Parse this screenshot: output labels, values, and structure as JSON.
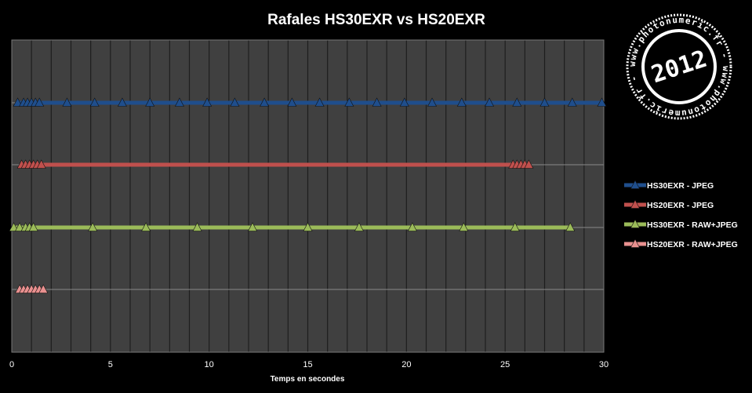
{
  "chart_data": {
    "type": "line",
    "title": "Rafales HS30EXR vs HS20EXR",
    "xlabel": "Temps en secondes",
    "xlim": [
      0,
      30
    ],
    "xticks": [
      "0",
      "5",
      "10",
      "15",
      "20",
      "25",
      "30"
    ],
    "grid": true,
    "legend_position": "right",
    "series": [
      {
        "name": "HS30EXR - JPEG",
        "color": "#1f4e8c",
        "x": [
          0.3,
          0.6,
          0.8,
          1.0,
          1.2,
          1.4,
          2.8,
          4.2,
          5.6,
          7.0,
          8.5,
          9.9,
          11.3,
          12.8,
          14.2,
          15.6,
          17.1,
          18.5,
          19.9,
          21.3,
          22.8,
          24.2,
          25.6,
          27.0,
          28.4,
          29.9
        ],
        "y": [
          4,
          4,
          4,
          4,
          4,
          4,
          4,
          4,
          4,
          4,
          4,
          4,
          4,
          4,
          4,
          4,
          4,
          4,
          4,
          4,
          4,
          4,
          4,
          4,
          4,
          4
        ]
      },
      {
        "name": "HS20EXR - JPEG",
        "color": "#c0504d",
        "x": [
          0.5,
          0.7,
          0.9,
          1.1,
          1.3,
          1.5,
          25.4,
          25.6,
          25.8,
          26.0,
          26.2
        ],
        "y": [
          3,
          3,
          3,
          3,
          3,
          3,
          3,
          3,
          3,
          3,
          3
        ]
      },
      {
        "name": "HS30EXR - RAW+JPEG",
        "color": "#9bbb59",
        "x": [
          0.1,
          0.4,
          0.7,
          0.9,
          1.1,
          4.1,
          6.8,
          9.4,
          12.2,
          15.0,
          17.6,
          20.3,
          22.9,
          25.5,
          28.3
        ],
        "y": [
          2,
          2,
          2,
          2,
          2,
          2,
          2,
          2,
          2,
          2,
          2,
          2,
          2,
          2,
          2
        ]
      },
      {
        "name": "HS20EXR - RAW+JPEG",
        "color": "#e8908f",
        "x": [
          0.4,
          0.6,
          0.8,
          1.0,
          1.2,
          1.4,
          1.6
        ],
        "y": [
          1,
          1,
          1,
          1,
          1,
          1,
          1
        ]
      }
    ]
  },
  "watermark": {
    "ring_text": "www.photonumeric.fr - www.photonumeric.fr - ",
    "year": "2012"
  }
}
